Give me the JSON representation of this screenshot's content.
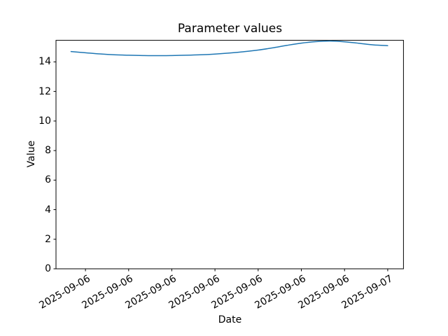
{
  "figure": {
    "title": "Parameter values",
    "xlabel": "Date",
    "ylabel": "Value"
  },
  "chart_data": {
    "type": "line",
    "title": "Parameter values",
    "xlabel": "Date",
    "ylabel": "Value",
    "grid": false,
    "legend": null,
    "ylim": [
      0,
      15.46
    ],
    "y_ticks": [
      "0",
      "2",
      "4",
      "6",
      "8",
      "10",
      "12",
      "14"
    ],
    "y_tick_values": [
      0,
      2,
      4,
      6,
      8,
      10,
      12,
      14
    ],
    "x_tick_labels": [
      "2025-09-06",
      "2025-09-06",
      "2025-09-06",
      "2025-09-06",
      "2025-09-06",
      "2025-09-06",
      "2025-09-06",
      "2025-09-07"
    ],
    "x_tick_point_indices": [
      1,
      4,
      7,
      10,
      13,
      16,
      19,
      22
    ],
    "series": [
      {
        "name": "parameter-values",
        "color": "#1f77b4",
        "x": [
          "2025-09-06 02:00",
          "2025-09-06 03:00",
          "2025-09-06 04:00",
          "2025-09-06 05:00",
          "2025-09-06 06:00",
          "2025-09-06 07:00",
          "2025-09-06 08:00",
          "2025-09-06 09:00",
          "2025-09-06 10:00",
          "2025-09-06 11:00",
          "2025-09-06 12:00",
          "2025-09-06 13:00",
          "2025-09-06 14:00",
          "2025-09-06 15:00",
          "2025-09-06 16:00",
          "2025-09-06 17:00",
          "2025-09-06 18:00",
          "2025-09-06 19:00",
          "2025-09-06 20:00",
          "2025-09-06 21:00",
          "2025-09-06 22:00",
          "2025-09-06 23:00",
          "2025-09-07 00:00"
        ],
        "y": [
          14.7,
          14.62,
          14.54,
          14.48,
          14.45,
          14.43,
          14.42,
          14.43,
          14.45,
          14.48,
          14.53,
          14.6,
          14.69,
          14.8,
          14.95,
          15.12,
          15.27,
          15.37,
          15.41,
          15.36,
          15.26,
          15.15,
          15.1
        ]
      }
    ]
  }
}
